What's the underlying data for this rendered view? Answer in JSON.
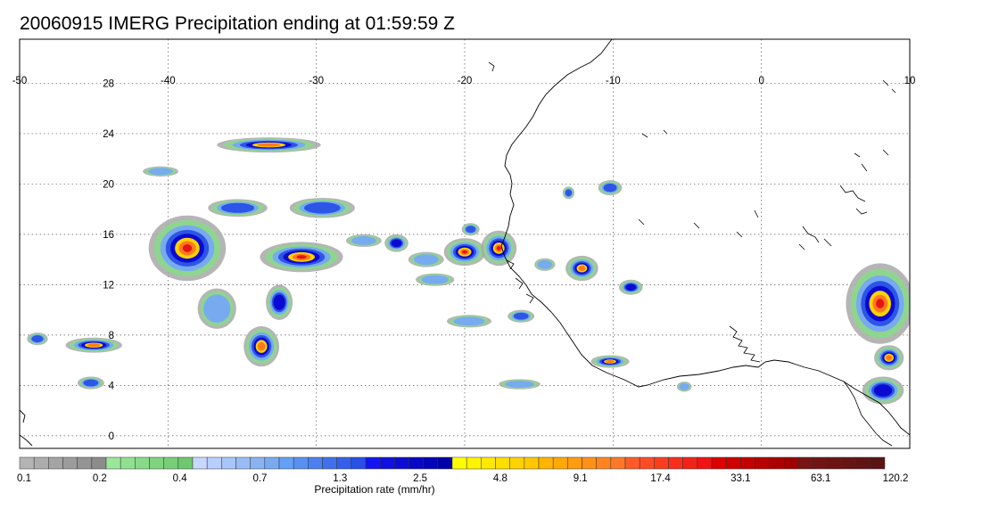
{
  "title": "20060915 IMERG Precipitation ending at 01:59:59 Z",
  "map": {
    "lon_range": [
      -50,
      10
    ],
    "lat_range": [
      -1,
      31.5
    ],
    "lon_ticks": [
      -50,
      -40,
      -30,
      -20,
      -10,
      0,
      10
    ],
    "lon_tick_labels": [
      "-50",
      "-40",
      "-30",
      "-20",
      "-10",
      "0",
      "10"
    ],
    "lat_ticks": [
      0,
      4,
      8,
      12,
      16,
      20,
      24,
      28
    ],
    "lat_tick_labels": [
      "0",
      "4",
      "8",
      "12",
      "16",
      "20",
      "24",
      "28"
    ],
    "grid": true,
    "grid_style": "dotted",
    "coastline_color": "#000000"
  },
  "colorbar": {
    "title": "Precipitation rate (mm/hr)",
    "labels": [
      "0.1",
      "0.2",
      "0.4",
      "0.7",
      "1.3",
      "2.5",
      "4.8",
      "9.1",
      "17.4",
      "33.1",
      "63.1",
      "120.2"
    ],
    "groups": [
      {
        "from": "#b4b4b4",
        "to": "#8c8c8c"
      },
      {
        "from": "#9ae69a",
        "to": "#6ec86e"
      },
      {
        "from": "#c8d7ff",
        "to": "#78aaf0"
      },
      {
        "from": "#64a0f5",
        "to": "#2850e6"
      },
      {
        "from": "#1414f0",
        "to": "#0000aa"
      },
      {
        "from": "#ffff00",
        "to": "#ffc800"
      },
      {
        "from": "#ffb400",
        "to": "#ff7828"
      },
      {
        "from": "#ff5a28",
        "to": "#f01414"
      },
      {
        "from": "#dc0000",
        "to": "#a00000"
      },
      {
        "from": "#781414",
        "to": "#5a1414"
      }
    ],
    "cells_per_group": 6
  },
  "storms": [
    {
      "lon": -38.7,
      "lat": 14.9,
      "rx": 2.6,
      "ry": 2.6,
      "peak": 5
    },
    {
      "lon": -31.0,
      "lat": 14.2,
      "rx": 2.8,
      "ry": 1.2,
      "peak": 5
    },
    {
      "lon": -20.0,
      "lat": 14.6,
      "rx": 1.4,
      "ry": 1.1,
      "peak": 5
    },
    {
      "lon": -17.7,
      "lat": 14.9,
      "rx": 1.2,
      "ry": 1.4,
      "peak": 5
    },
    {
      "lon": -24.6,
      "lat": 15.3,
      "rx": 0.8,
      "ry": 0.7,
      "peak": 3
    },
    {
      "lon": -19.6,
      "lat": 16.4,
      "rx": 0.6,
      "ry": 0.5,
      "peak": 2
    },
    {
      "lon": -12.1,
      "lat": 13.3,
      "rx": 1.1,
      "ry": 1.0,
      "peak": 4
    },
    {
      "lon": -8.8,
      "lat": 11.8,
      "rx": 0.8,
      "ry": 0.6,
      "peak": 3
    },
    {
      "lon": -10.2,
      "lat": 19.7,
      "rx": 0.8,
      "ry": 0.6,
      "peak": 2
    },
    {
      "lon": -13.0,
      "lat": 19.3,
      "rx": 0.4,
      "ry": 0.5,
      "peak": 2
    },
    {
      "lon": -33.7,
      "lat": 7.1,
      "rx": 1.2,
      "ry": 1.6,
      "peak": 4
    },
    {
      "lon": -36.7,
      "lat": 10.1,
      "rx": 1.3,
      "ry": 1.6,
      "peak": 1
    },
    {
      "lon": -32.5,
      "lat": 10.6,
      "rx": 0.9,
      "ry": 1.4,
      "peak": 3
    },
    {
      "lon": -45.0,
      "lat": 7.2,
      "rx": 1.9,
      "ry": 0.6,
      "peak": 4
    },
    {
      "lon": -48.8,
      "lat": 7.7,
      "rx": 0.7,
      "ry": 0.5,
      "peak": 2
    },
    {
      "lon": -45.2,
      "lat": 4.2,
      "rx": 0.9,
      "ry": 0.5,
      "peak": 2
    },
    {
      "lon": -10.2,
      "lat": 5.9,
      "rx": 1.3,
      "ry": 0.5,
      "peak": 4
    },
    {
      "lon": 8.0,
      "lat": 10.5,
      "rx": 2.3,
      "ry": 3.2,
      "peak": 5
    },
    {
      "lon": 8.6,
      "lat": 6.2,
      "rx": 1.0,
      "ry": 1.0,
      "peak": 4
    },
    {
      "lon": 8.2,
      "lat": 3.6,
      "rx": 1.4,
      "ry": 1.1,
      "peak": 3
    },
    {
      "lon": -33.2,
      "lat": 23.1,
      "rx": 3.5,
      "ry": 0.6,
      "peak": 4
    },
    {
      "lon": -29.6,
      "lat": 18.1,
      "rx": 2.2,
      "ry": 0.8,
      "peak": 2
    },
    {
      "lon": -35.3,
      "lat": 18.1,
      "rx": 2.0,
      "ry": 0.7,
      "peak": 2
    },
    {
      "lon": -16.2,
      "lat": 9.5,
      "rx": 0.9,
      "ry": 0.5,
      "peak": 2
    },
    {
      "lon": -19.7,
      "lat": 9.1,
      "rx": 1.5,
      "ry": 0.5,
      "peak": 1
    },
    {
      "lon": -14.6,
      "lat": 13.6,
      "rx": 0.7,
      "ry": 0.5,
      "peak": 1
    },
    {
      "lon": -22.6,
      "lat": 14.0,
      "rx": 1.2,
      "ry": 0.6,
      "peak": 1
    },
    {
      "lon": -26.8,
      "lat": 15.5,
      "rx": 1.2,
      "ry": 0.5,
      "peak": 1
    },
    {
      "lon": -22.0,
      "lat": 12.4,
      "rx": 1.3,
      "ry": 0.5,
      "peak": 1
    },
    {
      "lon": -16.3,
      "lat": 4.1,
      "rx": 1.4,
      "ry": 0.4,
      "peak": 1
    },
    {
      "lon": -40.5,
      "lat": 21.0,
      "rx": 1.2,
      "ry": 0.4,
      "peak": 1
    },
    {
      "lon": -5.2,
      "lat": 3.9,
      "rx": 0.5,
      "ry": 0.4,
      "peak": 1
    }
  ]
}
